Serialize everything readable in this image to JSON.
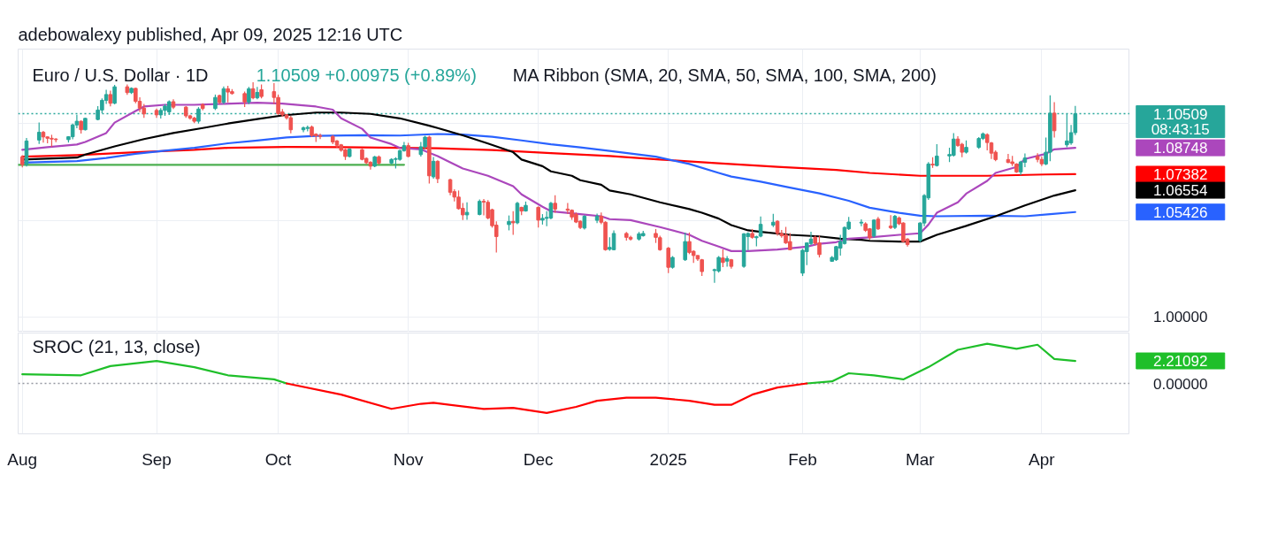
{
  "chart_data": [
    {
      "type": "candlestick",
      "title": "Euro / U.S. Dollar · 1D",
      "subtitle": "1.10509 +0.00975 (+0.89%)",
      "annotations": [
        "adebowalexy published, Apr 09, 2025 12:16 UTC",
        "MA Ribbon (SMA, 20, SMA, 50, SMA, 100, SMA, 200)",
        "08:43:15"
      ],
      "x": [
        "2024-08-01",
        "2024-08-02",
        "2024-08-05",
        "2024-08-06",
        "2024-08-07",
        "2024-08-08",
        "2024-08-09",
        "2024-08-12",
        "2024-08-13",
        "2024-08-14",
        "2024-08-15",
        "2024-08-16",
        "2024-08-19",
        "2024-08-20",
        "2024-08-21",
        "2024-08-22",
        "2024-08-23",
        "2024-08-26",
        "2024-08-27",
        "2024-08-28",
        "2024-08-29",
        "2024-08-30",
        "2024-09-02",
        "2024-09-03",
        "2024-09-04",
        "2024-09-05",
        "2024-09-06",
        "2024-09-09",
        "2024-09-10",
        "2024-09-11",
        "2024-09-12",
        "2024-09-13",
        "2024-09-16",
        "2024-09-17",
        "2024-09-18",
        "2024-09-19",
        "2024-09-20",
        "2024-09-23",
        "2024-09-24",
        "2024-09-25",
        "2024-09-26",
        "2024-09-27",
        "2024-09-30",
        "2024-10-01",
        "2024-10-02",
        "2024-10-03",
        "2024-10-04",
        "2024-10-07",
        "2024-10-08",
        "2024-10-09",
        "2024-10-10",
        "2024-10-11",
        "2024-10-14",
        "2024-10-15",
        "2024-10-16",
        "2024-10-17",
        "2024-10-18",
        "2024-10-21",
        "2024-10-22",
        "2024-10-23",
        "2024-10-24",
        "2024-10-25",
        "2024-10-28",
        "2024-10-29",
        "2024-10-30",
        "2024-10-31",
        "2024-11-01",
        "2024-11-04",
        "2024-11-05",
        "2024-11-06",
        "2024-11-07",
        "2024-11-08",
        "2024-11-11",
        "2024-11-12",
        "2024-11-13",
        "2024-11-14",
        "2024-11-15",
        "2024-11-18",
        "2024-11-19",
        "2024-11-20",
        "2024-11-21",
        "2024-11-22",
        "2024-11-25",
        "2024-11-26",
        "2024-11-27",
        "2024-11-28",
        "2024-11-29",
        "2024-12-02",
        "2024-12-03",
        "2024-12-04",
        "2024-12-05",
        "2024-12-06",
        "2024-12-09",
        "2024-12-10",
        "2024-12-11",
        "2024-12-12",
        "2024-12-13",
        "2024-12-16",
        "2024-12-17",
        "2024-12-18",
        "2024-12-19",
        "2024-12-20",
        "2024-12-23",
        "2024-12-24",
        "2024-12-26",
        "2024-12-27",
        "2024-12-30",
        "2024-12-31",
        "2025-01-02",
        "2025-01-03",
        "2025-01-06",
        "2025-01-07",
        "2025-01-08",
        "2025-01-09",
        "2025-01-10",
        "2025-01-13",
        "2025-01-14",
        "2025-01-15",
        "2025-01-16",
        "2025-01-17",
        "2025-01-20",
        "2025-01-21",
        "2025-01-22",
        "2025-01-23",
        "2025-01-24",
        "2025-01-27",
        "2025-01-28",
        "2025-01-29",
        "2025-01-30",
        "2025-01-31",
        "2025-02-03",
        "2025-02-04",
        "2025-02-05",
        "2025-02-06",
        "2025-02-07",
        "2025-02-10",
        "2025-02-11",
        "2025-02-12",
        "2025-02-13",
        "2025-02-14",
        "2025-02-17",
        "2025-02-18",
        "2025-02-19",
        "2025-02-20",
        "2025-02-21",
        "2025-02-24",
        "2025-02-25",
        "2025-02-26",
        "2025-02-27",
        "2025-02-28",
        "2025-03-03",
        "2025-03-04",
        "2025-03-05",
        "2025-03-06",
        "2025-03-07",
        "2025-03-10",
        "2025-03-11",
        "2025-03-12",
        "2025-03-13",
        "2025-03-14",
        "2025-03-17",
        "2025-03-18",
        "2025-03-19",
        "2025-03-20",
        "2025-03-21",
        "2025-03-24",
        "2025-03-25",
        "2025-03-26",
        "2025-03-27",
        "2025-03-28",
        "2025-03-31",
        "2025-04-01",
        "2025-04-02",
        "2025-04-03",
        "2025-04-04",
        "2025-04-07",
        "2025-04-08",
        "2025-04-09"
      ],
      "ohlc": [
        [
          1.0828,
          1.0836,
          1.0774,
          1.0788
        ],
        [
          1.0788,
          1.0926,
          1.0778,
          1.091
        ],
        [
          1.0915,
          1.1005,
          1.0895,
          1.0955
        ],
        [
          1.0955,
          1.0962,
          1.0902,
          1.0931
        ],
        [
          1.0931,
          1.0933,
          1.0898,
          1.0924
        ],
        [
          1.0924,
          1.0942,
          1.088,
          1.092
        ],
        [
          1.092,
          1.0924,
          1.0904,
          1.0917
        ],
        [
          1.0917,
          1.0935,
          1.0902,
          1.0932
        ],
        [
          1.0932,
          1.1,
          1.0919,
          1.0993
        ],
        [
          1.0993,
          1.1046,
          1.0976,
          1.1012
        ],
        [
          1.1012,
          1.1016,
          1.0948,
          1.0968
        ],
        [
          1.0968,
          1.103,
          1.0964,
          1.1027
        ],
        [
          1.1021,
          1.109,
          1.1017,
          1.107
        ],
        [
          1.107,
          1.113,
          1.1053,
          1.112
        ],
        [
          1.112,
          1.1175,
          1.1101,
          1.115
        ],
        [
          1.115,
          1.117,
          1.1089,
          1.1105
        ],
        [
          1.1105,
          1.12,
          1.11,
          1.119
        ],
        [
          1.119,
          1.1202,
          1.1148,
          1.116
        ],
        [
          1.116,
          1.1187,
          1.1153,
          1.1182
        ],
        [
          1.1182,
          1.1185,
          1.1105,
          1.1115
        ],
        [
          1.1115,
          1.1136,
          1.1059,
          1.108
        ],
        [
          1.108,
          1.1102,
          1.1029,
          1.105
        ],
        [
          1.1068,
          1.1078,
          1.103,
          1.1045
        ],
        [
          1.1045,
          1.108,
          1.1026,
          1.1068
        ],
        [
          1.1068,
          1.11,
          1.104,
          1.109
        ],
        [
          1.106,
          1.112,
          1.1044,
          1.1113
        ],
        [
          1.1113,
          1.1125,
          1.1075,
          1.1085
        ],
        [
          1.1085,
          1.109,
          1.103,
          1.104
        ],
        [
          1.104,
          1.1045,
          1.102,
          1.1028
        ],
        [
          1.1028,
          1.1035,
          1.1002,
          1.1012
        ],
        [
          1.1012,
          1.1085,
          1.1,
          1.1075
        ],
        [
          1.1098,
          1.1105,
          1.1068,
          1.1078
        ],
        [
          1.1078,
          1.115,
          1.107,
          1.1135
        ],
        [
          1.1145,
          1.115,
          1.11,
          1.111
        ],
        [
          1.111,
          1.1192,
          1.11,
          1.118
        ],
        [
          1.118,
          1.1195,
          1.111,
          1.1163
        ],
        [
          1.1165,
          1.1178,
          1.115,
          1.1155
        ],
        [
          1.1155,
          1.1165,
          1.1085,
          1.1112
        ],
        [
          1.1112,
          1.119,
          1.11,
          1.118
        ],
        [
          1.118,
          1.1214,
          1.1125,
          1.1133
        ],
        [
          1.1133,
          1.119,
          1.1125,
          1.1161
        ],
        [
          1.1175,
          1.1202,
          1.113,
          1.114
        ],
        [
          1.1165,
          1.1209,
          1.11,
          1.1135
        ],
        [
          1.1135,
          1.115,
          1.1045,
          1.1052
        ],
        [
          1.106,
          1.1075,
          1.1035,
          1.1045
        ],
        [
          1.1045,
          1.105,
          1.102,
          1.103
        ],
        [
          1.103,
          1.104,
          1.095,
          1.0968
        ],
        [
          1.0968,
          1.0985,
          1.0955,
          1.0978
        ],
        [
          1.0975,
          1.099,
          1.096,
          1.098
        ],
        [
          1.0982,
          1.099,
          1.093,
          1.0938
        ],
        [
          1.0945,
          1.095,
          1.0905,
          1.0937
        ],
        [
          1.0938,
          1.0948,
          1.092,
          1.0934
        ],
        [
          1.0934,
          1.094,
          1.0894,
          1.0905
        ],
        [
          1.091,
          1.0915,
          1.0875,
          1.0888
        ],
        [
          1.089,
          1.0895,
          1.0855,
          1.0862
        ],
        [
          1.0865,
          1.087,
          1.0812,
          1.083
        ],
        [
          1.083,
          1.0872,
          1.0825,
          1.0868
        ],
        [
          1.0865,
          1.087,
          1.081,
          1.0815
        ],
        [
          1.082,
          1.0825,
          1.079,
          1.0798
        ],
        [
          1.08,
          1.0805,
          1.0762,
          1.078
        ],
        [
          1.078,
          1.0833,
          1.0775,
          1.0828
        ],
        [
          1.0828,
          1.0835,
          1.0788,
          1.0796
        ],
        [
          1.0796,
          1.082,
          1.079,
          1.0815
        ],
        [
          1.0815,
          1.0826,
          1.0768,
          1.0818
        ],
        [
          1.0815,
          1.0865,
          1.0808,
          1.086
        ],
        [
          1.086,
          1.0905,
          1.0855,
          1.0886
        ],
        [
          1.0886,
          1.09,
          1.0826,
          1.083
        ],
        [
          1.084,
          1.0905,
          1.083,
          1.088
        ],
        [
          1.088,
          1.0937,
          1.087,
          1.093
        ],
        [
          1.093,
          1.0937,
          1.069,
          1.073
        ],
        [
          1.0725,
          1.0827,
          1.0715,
          1.0805
        ],
        [
          1.0805,
          1.081,
          1.0692,
          1.0715
        ],
        [
          1.071,
          1.0715,
          1.063,
          1.0645
        ],
        [
          1.0648,
          1.066,
          1.0597,
          1.062
        ],
        [
          1.062,
          1.0654,
          1.0555,
          1.056
        ],
        [
          1.0562,
          1.0589,
          1.0502,
          1.0528
        ],
        [
          1.0528,
          1.0593,
          1.0503,
          1.0541
        ],
        [
          1.053,
          1.0608,
          1.0525,
          1.0598
        ],
        [
          1.0598,
          1.061,
          1.0525,
          1.0594
        ],
        [
          1.0593,
          1.0604,
          1.0505,
          1.0512
        ],
        [
          1.0555,
          1.056,
          1.0462,
          1.0472
        ],
        [
          1.0475,
          1.0495,
          1.0334,
          1.0416
        ],
        [
          1.0478,
          1.0525,
          1.0448,
          1.0494
        ],
        [
          1.0494,
          1.0547,
          1.0425,
          1.0487
        ],
        [
          1.0487,
          1.0595,
          1.048,
          1.0588
        ],
        [
          1.0567,
          1.057,
          1.0527,
          1.0548
        ],
        [
          1.0548,
          1.0597,
          1.0545,
          1.0577
        ],
        [
          1.0567,
          1.0572,
          1.0463,
          1.0501
        ],
        [
          1.0501,
          1.0532,
          1.0478,
          1.051
        ],
        [
          1.051,
          1.0547,
          1.047,
          1.0515
        ],
        [
          1.0512,
          1.0595,
          1.0505,
          1.0588
        ],
        [
          1.0588,
          1.063,
          1.0539,
          1.0558
        ],
        [
          1.0558,
          1.0589,
          1.0534,
          1.0552
        ],
        [
          1.0552,
          1.0556,
          1.0503,
          1.0517
        ],
        [
          1.0532,
          1.054,
          1.0485,
          1.0491
        ],
        [
          1.0495,
          1.05,
          1.0455,
          1.0463
        ],
        [
          1.046,
          1.0527,
          1.0452,
          1.0521
        ],
        [
          1.05,
          1.0535,
          1.0485,
          1.0521
        ],
        [
          1.0521,
          1.054,
          1.048,
          1.049
        ],
        [
          1.049,
          1.0495,
          1.0343,
          1.0348
        ],
        [
          1.035,
          1.0412,
          1.0343,
          1.036
        ],
        [
          1.0348,
          1.0448,
          1.0345,
          1.0432
        ],
        [
          1.0432,
          1.044,
          1.0395,
          1.0412
        ],
        [
          1.0412,
          1.042,
          1.0395,
          1.0403
        ],
        [
          1.0403,
          1.044,
          1.0395,
          1.043
        ],
        [
          1.042,
          1.0446,
          1.0416,
          1.0432
        ],
        [
          1.0432,
          1.0455,
          1.0383,
          1.0412
        ],
        [
          1.041,
          1.042,
          1.0343,
          1.0348
        ],
        [
          1.0356,
          1.0362,
          1.0227,
          1.0257
        ],
        [
          1.0257,
          1.0315,
          1.025,
          1.0308
        ],
        [
          1.0296,
          1.0436,
          1.029,
          1.039
        ],
        [
          1.039,
          1.0437,
          1.0325,
          1.0334
        ],
        [
          1.034,
          1.0345,
          1.028,
          1.0318
        ],
        [
          1.0318,
          1.032,
          1.029,
          1.03
        ],
        [
          1.0296,
          1.03,
          1.0212,
          1.0235
        ],
        [
          1.024,
          1.025,
          1.0177,
          1.0245
        ],
        [
          1.0238,
          1.0315,
          1.023,
          1.0308
        ],
        [
          1.0305,
          1.035,
          1.0258,
          1.0282
        ],
        [
          1.0289,
          1.0315,
          1.026,
          1.0302
        ],
        [
          1.0296,
          1.03,
          1.025,
          1.0262
        ],
        [
          1.0262,
          1.0434,
          1.0255,
          1.043
        ],
        [
          1.0416,
          1.0437,
          1.0345,
          1.0432
        ],
        [
          1.0432,
          1.0455,
          1.0405,
          1.0412
        ],
        [
          1.041,
          1.042,
          1.0365,
          1.0415
        ],
        [
          1.0418,
          1.052,
          1.0412,
          1.0479
        ],
        [
          1.0475,
          1.0533,
          1.0465,
          1.049
        ],
        [
          1.0495,
          1.05,
          1.042,
          1.0432
        ],
        [
          1.0432,
          1.045,
          1.041,
          1.042
        ],
        [
          1.0425,
          1.0466,
          1.0378,
          1.0383
        ],
        [
          1.039,
          1.0434,
          1.0345,
          1.0348
        ],
        [
          1.0227,
          1.0352,
          1.0212,
          1.0345
        ],
        [
          1.0338,
          1.0385,
          1.0268,
          1.0383
        ],
        [
          1.038,
          1.0441,
          1.0372,
          1.0403
        ],
        [
          1.0412,
          1.042,
          1.037,
          1.0381
        ],
        [
          1.0383,
          1.0421,
          1.0308,
          1.0323
        ],
        [
          1.0288,
          1.0315,
          1.0285,
          1.0308
        ],
        [
          1.0296,
          1.0368,
          1.029,
          1.0364
        ],
        [
          1.0356,
          1.0425,
          1.0318,
          1.039
        ],
        [
          1.038,
          1.0468,
          1.0375,
          1.0463
        ],
        [
          1.0456,
          1.0517,
          1.045,
          1.0491
        ],
        [
          1.0486,
          1.0505,
          1.047,
          1.049
        ],
        [
          1.0482,
          1.049,
          1.044,
          1.0448
        ],
        [
          1.0456,
          1.046,
          1.04,
          1.041
        ],
        [
          1.0419,
          1.0505,
          1.041,
          1.0501
        ],
        [
          1.0506,
          1.0517,
          1.045,
          1.0456
        ],
        [
          1.047,
          1.0527,
          1.0455,
          1.0462
        ],
        [
          1.0463,
          1.0528,
          1.0455,
          1.0521
        ],
        [
          1.0512,
          1.052,
          1.0475,
          1.0482
        ],
        [
          1.0486,
          1.049,
          1.0385,
          1.039
        ],
        [
          1.0403,
          1.0408,
          1.0364,
          1.0375
        ],
        [
          1.0395,
          1.049,
          1.0387,
          1.0486
        ],
        [
          1.0486,
          1.0635,
          1.047,
          1.0628
        ],
        [
          1.0616,
          1.0801,
          1.0605,
          1.0791
        ],
        [
          1.079,
          1.0826,
          1.0771,
          1.0786
        ],
        [
          1.0783,
          1.0893,
          1.0778,
          1.0832
        ],
        [
          1.0833,
          1.0875,
          1.0801,
          1.084
        ],
        [
          1.0836,
          1.0951,
          1.083,
          1.092
        ],
        [
          1.092,
          1.0935,
          1.088,
          1.0887
        ],
        [
          1.0893,
          1.09,
          1.0826,
          1.0852
        ],
        [
          1.0852,
          1.0913,
          1.0845,
          1.0877
        ],
        [
          1.0877,
          1.093,
          1.087,
          1.0923
        ],
        [
          1.0923,
          1.0954,
          1.0915,
          1.0947
        ],
        [
          1.0943,
          1.095,
          1.0862,
          1.0902
        ],
        [
          1.09,
          1.0905,
          1.0817,
          1.0847
        ],
        [
          1.0852,
          1.0862,
          1.0805,
          1.0814
        ],
        [
          1.0814,
          1.0843,
          1.0795,
          1.0799
        ],
        [
          1.0802,
          1.0833,
          1.078,
          1.0793
        ],
        [
          1.0791,
          1.0795,
          1.0745,
          1.075
        ],
        [
          1.075,
          1.0808,
          1.0734,
          1.0802
        ],
        [
          1.08,
          1.0845,
          1.0775,
          1.0822
        ],
        [
          1.083,
          1.0847,
          1.08,
          1.0815
        ],
        [
          1.0815,
          1.083,
          1.078,
          1.0792
        ],
        [
          1.0791,
          1.0928,
          1.0785,
          1.0852
        ],
        [
          1.0852,
          1.1146,
          1.0806,
          1.1054
        ],
        [
          1.1054,
          1.1111,
          1.0928,
          1.0963
        ],
        [
          1.089,
          1.105,
          1.0877,
          1.091
        ],
        [
          1.09,
          1.0993,
          1.089,
          1.0953
        ],
        [
          1.0953,
          1.1091,
          1.094,
          1.10509
        ]
      ],
      "colors": [
        "#ef5350",
        "#26a69a",
        "#26a69a",
        "#ef5350",
        "#ef5350",
        "#ef5350",
        "#ef5350",
        "#26a69a",
        "#26a69a",
        "#26a69a",
        "#ef5350",
        "#26a69a",
        "#26a69a",
        "#26a69a",
        "#26a69a",
        "#ef5350",
        "#26a69a",
        "#ef5350",
        "#26a69a",
        "#ef5350",
        "#ef5350",
        "#ef5350",
        "#ef5350",
        "#26a69a",
        "#26a69a",
        "#26a69a",
        "#ef5350",
        "#ef5350",
        "#ef5350",
        "#ef5350",
        "#26a69a",
        "#ef5350",
        "#26a69a",
        "#ef5350",
        "#26a69a",
        "#ef5350",
        "#ef5350",
        "#ef5350",
        "#26a69a",
        "#ef5350",
        "#26a69a",
        "#ef5350",
        "#ef5350",
        "#ef5350",
        "#ef5350",
        "#ef5350",
        "#ef5350",
        "#26a69a",
        "#26a69a",
        "#ef5350",
        "#ef5350",
        "#ef5350",
        "#ef5350",
        "#ef5350",
        "#ef5350",
        "#ef5350",
        "#26a69a",
        "#ef5350",
        "#ef5350",
        "#ef5350",
        "#26a69a",
        "#ef5350",
        "#26a69a",
        "#26a69a",
        "#26a69a",
        "#26a69a",
        "#ef5350",
        "#26a69a",
        "#26a69a",
        "#ef5350",
        "#26a69a",
        "#ef5350",
        "#ef5350",
        "#ef5350",
        "#ef5350",
        "#ef5350",
        "#26a69a",
        "#26a69a",
        "#ef5350",
        "#ef5350",
        "#ef5350",
        "#ef5350",
        "#26a69a",
        "#ef5350",
        "#26a69a",
        "#ef5350",
        "#26a69a",
        "#ef5350",
        "#26a69a",
        "#26a69a",
        "#26a69a",
        "#ef5350",
        "#ef5350",
        "#ef5350",
        "#ef5350",
        "#ef5350",
        "#26a69a",
        "#26a69a",
        "#ef5350",
        "#ef5350",
        "#26a69a",
        "#26a69a",
        "#ef5350",
        "#ef5350",
        "#26a69a",
        "#26a69a",
        "#ef5350",
        "#ef5350",
        "#ef5350",
        "#26a69a",
        "#26a69a",
        "#ef5350",
        "#ef5350",
        "#ef5350",
        "#ef5350",
        "#26a69a",
        "#26a69a",
        "#ef5350",
        "#26a69a",
        "#ef5350",
        "#26a69a",
        "#26a69a",
        "#ef5350",
        "#26a69a",
        "#26a69a",
        "#26a69a",
        "#ef5350",
        "#ef5350",
        "#ef5350",
        "#ef5350",
        "#26a69a",
        "#26a69a",
        "#26a69a",
        "#ef5350",
        "#ef5350",
        "#26a69a",
        "#26a69a",
        "#26a69a",
        "#26a69a",
        "#26a69a",
        "#26a69a",
        "#ef5350",
        "#ef5350",
        "#26a69a",
        "#ef5350",
        "#ef5350",
        "#26a69a",
        "#ef5350",
        "#ef5350",
        "#ef5350",
        "#26a69a",
        "#26a69a",
        "#26a69a",
        "#ef5350",
        "#26a69a",
        "#26a69a",
        "#26a69a",
        "#ef5350",
        "#ef5350",
        "#26a69a",
        "#26a69a",
        "#26a69a",
        "#ef5350",
        "#ef5350",
        "#ef5350",
        "#ef5350",
        "#ef5350",
        "#ef5350",
        "#26a69a",
        "#26a69a",
        "#ef5350",
        "#ef5350",
        "#26a69a",
        "#26a69a",
        "#ef5350",
        "#26a69a",
        "#26a69a",
        "#26a69a"
      ],
      "series": [
        {
          "type": "line",
          "color": "#4caf50",
          "x": [
            "2024-07-31",
            "2024-10-31"
          ],
          "values": [
            1.0787,
            1.0787
          ]
        },
        {
          "type": "line",
          "color": "#ff0000",
          "x": [
            "2024-08-01",
            "2024-08-14",
            "2024-08-28",
            "2024-09-11",
            "2024-09-19",
            "2024-10-03",
            "2024-10-16",
            "2024-10-30",
            "2024-11-08",
            "2024-11-21",
            "2024-12-05",
            "2024-12-19",
            "2024-12-31",
            "2025-01-14",
            "2025-01-28",
            "2025-02-11",
            "2025-02-19",
            "2025-03-03",
            "2025-03-19",
            "2025-04-02",
            "2025-04-09"
          ],
          "values": [
            1.0829,
            1.0837,
            1.0852,
            1.0864,
            1.0875,
            1.0879,
            1.0878,
            1.0875,
            1.0872,
            1.0863,
            1.0847,
            1.0832,
            1.0814,
            1.0795,
            1.0776,
            1.076,
            1.0745,
            1.073,
            1.073,
            1.0737,
            1.07382
          ]
        },
        {
          "type": "line",
          "color": "#2962ff",
          "x": [
            "2024-08-01",
            "2024-08-14",
            "2024-08-21",
            "2024-08-28",
            "2024-09-04",
            "2024-09-11",
            "2024-09-19",
            "2024-09-26",
            "2024-10-03",
            "2024-10-10",
            "2024-10-21",
            "2024-10-30",
            "2024-11-08",
            "2024-11-14",
            "2024-11-21",
            "2024-11-28",
            "2024-12-05",
            "2024-12-12",
            "2024-12-19",
            "2024-12-30",
            "2025-01-07",
            "2025-01-14",
            "2025-01-17",
            "2025-01-24",
            "2025-01-31",
            "2025-02-07",
            "2025-02-14",
            "2025-02-19",
            "2025-02-26",
            "2025-03-03",
            "2025-03-07",
            "2025-03-19",
            "2025-03-28",
            "2025-04-03",
            "2025-04-09"
          ],
          "values": [
            1.0798,
            1.0806,
            1.0822,
            1.0844,
            1.086,
            1.0875,
            1.0898,
            1.0912,
            1.0928,
            1.0936,
            1.094,
            1.0938,
            1.0946,
            1.0943,
            1.0932,
            1.0913,
            1.0893,
            1.0877,
            1.0859,
            1.0829,
            1.0791,
            1.0745,
            1.0726,
            1.07,
            1.0669,
            1.0639,
            1.0601,
            1.0565,
            1.0539,
            1.0524,
            1.0521,
            1.0524,
            1.0521,
            1.0532,
            1.05426
          ]
        },
        {
          "type": "line",
          "color": "#000000",
          "x": [
            "2024-08-01",
            "2024-08-14",
            "2024-08-16",
            "2024-08-23",
            "2024-08-30",
            "2024-09-06",
            "2024-09-13",
            "2024-09-19",
            "2024-09-26",
            "2024-10-02",
            "2024-10-10",
            "2024-10-16",
            "2024-10-23",
            "2024-10-30",
            "2024-11-06",
            "2024-11-08",
            "2024-11-14",
            "2024-11-20",
            "2024-11-26",
            "2024-11-28",
            "2024-12-03",
            "2024-12-05",
            "2024-12-10",
            "2024-12-12",
            "2024-12-17",
            "2024-12-19",
            "2024-12-24",
            "2024-12-31",
            "2025-01-07",
            "2025-01-10",
            "2025-01-14",
            "2025-01-17",
            "2025-01-21",
            "2025-01-24",
            "2025-01-31",
            "2025-02-07",
            "2025-02-12",
            "2025-02-17",
            "2025-02-19",
            "2025-02-26",
            "2025-03-03",
            "2025-03-07",
            "2025-03-14",
            "2025-03-21",
            "2025-03-28",
            "2025-04-04",
            "2025-04-09"
          ],
          "values": [
            1.0814,
            1.0824,
            1.084,
            1.0882,
            1.092,
            1.0951,
            1.0977,
            1.1,
            1.1023,
            1.1042,
            1.1057,
            1.1057,
            1.105,
            1.1027,
            1.0989,
            1.0977,
            1.0939,
            1.0897,
            1.0852,
            1.0814,
            1.078,
            1.0753,
            1.073,
            1.0707,
            1.0684,
            1.0654,
            1.0634,
            1.0593,
            1.0558,
            1.0539,
            1.0509,
            1.0475,
            1.0448,
            1.044,
            1.0425,
            1.0417,
            1.0405,
            1.0399,
            1.0394,
            1.039,
            1.039,
            1.0425,
            1.0471,
            1.0521,
            1.0577,
            1.0628,
            1.06554
          ]
        },
        {
          "type": "line",
          "color": "#ab47bc",
          "x": [
            "2024-08-01",
            "2024-08-07",
            "2024-08-14",
            "2024-08-16",
            "2024-08-21",
            "2024-08-23",
            "2024-08-28",
            "2024-08-30",
            "2024-09-04",
            "2024-09-11",
            "2024-09-18",
            "2024-09-26",
            "2024-10-02",
            "2024-10-10",
            "2024-10-14",
            "2024-10-16",
            "2024-10-21",
            "2024-10-23",
            "2024-10-28",
            "2024-10-30",
            "2024-11-04",
            "2024-11-06",
            "2024-11-08",
            "2024-11-14",
            "2024-11-20",
            "2024-11-26",
            "2024-11-28",
            "2024-12-03",
            "2024-12-05",
            "2024-12-12",
            "2024-12-17",
            "2024-12-19",
            "2024-12-24",
            "2024-12-31",
            "2025-01-07",
            "2025-01-10",
            "2025-01-14",
            "2025-01-17",
            "2025-01-21",
            "2025-01-28",
            "2025-02-04",
            "2025-02-07",
            "2025-02-11",
            "2025-02-14",
            "2025-02-19",
            "2025-02-26",
            "2025-03-03",
            "2025-03-05",
            "2025-03-07",
            "2025-03-12",
            "2025-03-14",
            "2025-03-19",
            "2025-03-21",
            "2025-03-26",
            "2025-03-28",
            "2025-04-02",
            "2025-04-04",
            "2025-04-09"
          ],
          "values": [
            1.0864,
            1.0878,
            1.0892,
            1.0905,
            1.0951,
            1.1005,
            1.1065,
            1.1088,
            1.1097,
            1.1097,
            1.1102,
            1.1108,
            1.1103,
            1.1088,
            1.1072,
            1.1027,
            1.0973,
            1.0928,
            1.0894,
            1.0874,
            1.0867,
            1.0849,
            1.0832,
            1.0768,
            1.073,
            1.0676,
            1.0634,
            1.057,
            1.0547,
            1.0532,
            1.0521,
            1.0506,
            1.0501,
            1.0465,
            1.0425,
            1.0394,
            1.0364,
            1.0341,
            1.0341,
            1.0349,
            1.0364,
            1.0379,
            1.0387,
            1.0405,
            1.0412,
            1.0425,
            1.0433,
            1.0478,
            1.0539,
            1.0593,
            1.0638,
            1.0704,
            1.0745,
            1.0776,
            1.0817,
            1.0844,
            1.0867,
            1.08748
          ]
        }
      ],
      "xlim": [
        "2024-07-31",
        "2025-04-22"
      ],
      "xticks": [
        {
          "value": "2024-08-01",
          "label": null
        },
        {
          "value": "2024-09-02",
          "label": null
        },
        {
          "value": "2024-10-01",
          "label": null
        },
        {
          "value": "2024-11-01",
          "label": null
        },
        {
          "value": "2024-12-02",
          "label": null
        },
        {
          "value": "2025-01-02",
          "label": null
        },
        {
          "value": "2025-02-03",
          "label": null
        },
        {
          "value": "2025-03-03",
          "label": null
        },
        {
          "value": "2025-04-01",
          "label": null
        }
      ],
      "ylim": [
        0.9922,
        1.1385
      ],
      "yticks": [
        {
          "value": 1.0,
          "label": "1.00000"
        },
        {
          "value": 1.05,
          "label": null
        },
        {
          "value": 1.1,
          "label": null
        },
        {
          "value": 1.10509,
          "label": "1.10509"
        },
        {
          "value": 1.08748,
          "label": "1.08748"
        },
        {
          "value": 1.07382,
          "label": "1.07382"
        },
        {
          "value": 1.06554,
          "label": "1.06554"
        },
        {
          "value": 1.05426,
          "label": "1.05426"
        }
      ],
      "ref_lines": [
        {
          "axis": "y",
          "value": 1.10509,
          "color": "#26a69a",
          "line_style": "dotted"
        }
      ],
      "grid": true,
      "tick_labels": "y"
    },
    {
      "type": "line",
      "title": "SROC (21, 13, close)",
      "series": [
        {
          "color": "#1fbf2a",
          "x": [
            "2024-08-01",
            "2024-08-15",
            "2024-08-22",
            "2024-09-02",
            "2024-09-11",
            "2024-09-19",
            "2024-09-30",
            "2024-10-03",
            "2024-12-03",
            "2025-02-04",
            "2025-02-10",
            "2025-02-14",
            "2025-02-20",
            "2025-02-27",
            "2025-03-05",
            "2025-03-12",
            "2025-03-19",
            "2025-03-26",
            "2025-03-31",
            "2025-04-04",
            "2025-04-09"
          ],
          "values": [
            0.9,
            0.8,
            1.7,
            2.2,
            1.6,
            0.8,
            0.4,
            0,
            null,
            0,
            0.2,
            1.0,
            0.8,
            0.4,
            1.6,
            3.3,
            3.9,
            3.4,
            3.8,
            2.4,
            2.21092
          ]
        },
        {
          "color": "#ff0000",
          "x": [
            "2024-10-03",
            "2024-10-16",
            "2024-10-28",
            "2024-11-04",
            "2024-11-07",
            "2024-11-19",
            "2024-11-26",
            "2024-12-04",
            "2024-12-11",
            "2024-12-16",
            "2024-12-23",
            "2024-12-30",
            "2025-01-07",
            "2025-01-13",
            "2025-01-17",
            "2025-01-22",
            "2025-01-28",
            "2025-02-04"
          ],
          "values": [
            0,
            -1.1,
            -2.5,
            -2.0,
            -1.9,
            -2.5,
            -2.4,
            -2.9,
            -2.3,
            -1.7,
            -1.4,
            -1.4,
            -1.7,
            -2.1,
            -2.1,
            -1.1,
            -0.4,
            0
          ]
        }
      ],
      "xlim": [
        "2024-07-31",
        "2025-04-22"
      ],
      "xticks": [
        {
          "value": "2024-08-01",
          "label": "Aug"
        },
        {
          "value": "2024-09-02",
          "label": "Sep"
        },
        {
          "value": "2024-10-01",
          "label": "Oct"
        },
        {
          "value": "2024-11-01",
          "label": "Nov"
        },
        {
          "value": "2024-12-02",
          "label": "Dec"
        },
        {
          "value": "2025-01-02",
          "label": "2025"
        },
        {
          "value": "2025-02-03",
          "label": "Feb"
        },
        {
          "value": "2025-03-03",
          "label": "Mar"
        },
        {
          "value": "2025-04-01",
          "label": "Apr"
        }
      ],
      "ylim": [
        -4.95,
        4.95
      ],
      "yticks": [
        {
          "value": 0,
          "label": "0.00000"
        },
        {
          "value": 2.21092,
          "label": "2.21092"
        }
      ],
      "ref_lines": [
        {
          "axis": "y",
          "value": 0,
          "color": "#9598a1",
          "line_style": "dotted"
        }
      ],
      "grid": "x"
    }
  ]
}
